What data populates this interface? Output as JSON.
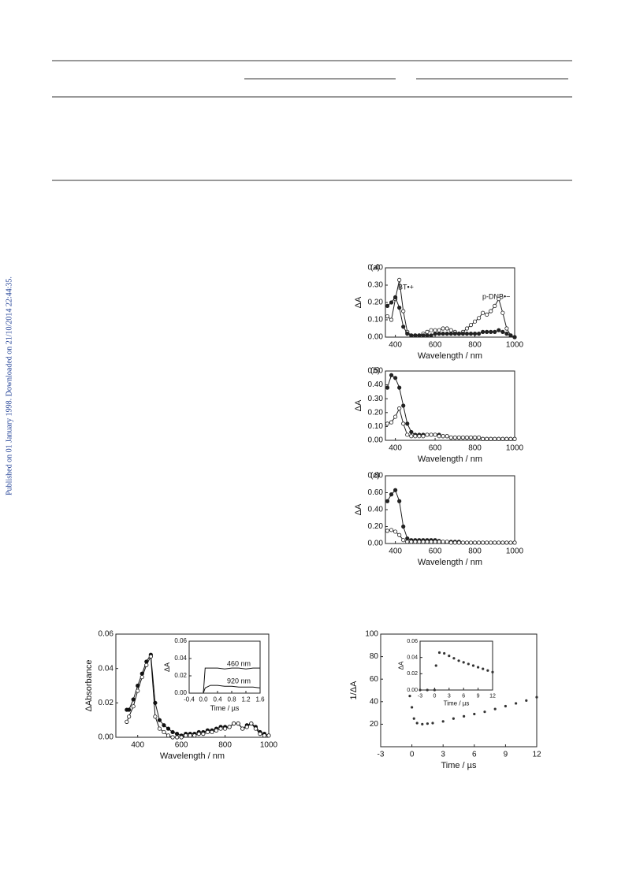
{
  "side_note": "Published on 01 January 1998. Downloaded on 21/10/2014 22:44:35.",
  "chart_data": [
    {
      "type": "line",
      "panel": "(a)",
      "xlabel": "Wavelength / nm",
      "ylabel": "ΔA",
      "annotations": [
        "BT•+",
        "p-DNB•−"
      ],
      "x": [
        360,
        380,
        400,
        420,
        440,
        460,
        480,
        500,
        520,
        540,
        560,
        580,
        600,
        620,
        640,
        660,
        680,
        700,
        720,
        740,
        760,
        780,
        800,
        820,
        840,
        860,
        880,
        900,
        920,
        940,
        960,
        980,
        1000
      ],
      "series": [
        {
          "marker": "open",
          "color": "#222222",
          "values": [
            0.12,
            0.1,
            0.22,
            0.33,
            0.15,
            0.03,
            0.01,
            0.01,
            0.01,
            0.02,
            0.03,
            0.04,
            0.04,
            0.04,
            0.05,
            0.05,
            0.04,
            0.03,
            0.02,
            0.03,
            0.05,
            0.07,
            0.09,
            0.11,
            0.14,
            0.13,
            0.15,
            0.18,
            0.22,
            0.14,
            0.05,
            0.01,
            0.0
          ]
        },
        {
          "marker": "filled",
          "color": "#222222",
          "values": [
            0.18,
            0.2,
            0.23,
            0.17,
            0.06,
            0.02,
            0.01,
            0.01,
            0.01,
            0.01,
            0.01,
            0.01,
            0.02,
            0.02,
            0.02,
            0.02,
            0.02,
            0.02,
            0.02,
            0.02,
            0.02,
            0.02,
            0.02,
            0.02,
            0.03,
            0.03,
            0.03,
            0.03,
            0.04,
            0.03,
            0.02,
            0.01,
            0.0
          ]
        }
      ],
      "xlim": [
        350,
        1000
      ],
      "xticks": [
        400,
        600,
        800,
        1000
      ],
      "ylim": [
        0,
        0.4
      ],
      "yticks": [
        {
          "value": 0,
          "label": "0.00"
        },
        {
          "value": 0.1,
          "label": "0.10"
        },
        {
          "value": 0.2,
          "label": "0.20"
        },
        {
          "value": 0.3,
          "label": "0.30"
        },
        {
          "value": 0.4,
          "label": "0.40"
        }
      ]
    },
    {
      "type": "line",
      "panel": "(b)",
      "xlabel": "Wavelength / nm",
      "ylabel": "ΔA",
      "x": [
        360,
        380,
        400,
        420,
        440,
        460,
        480,
        500,
        520,
        540,
        560,
        580,
        600,
        620,
        640,
        660,
        680,
        700,
        720,
        740,
        760,
        780,
        800,
        820,
        840,
        860,
        880,
        900,
        920,
        940,
        960,
        980,
        1000
      ],
      "series": [
        {
          "marker": "filled",
          "color": "#222222",
          "values": [
            0.38,
            0.47,
            0.45,
            0.38,
            0.25,
            0.12,
            0.06,
            0.04,
            0.04,
            0.04,
            0.04,
            0.04,
            0.04,
            0.04,
            0.03,
            0.03,
            0.02,
            0.02,
            0.02,
            0.02,
            0.02,
            0.02,
            0.02,
            0.02,
            0.01,
            0.01,
            0.01,
            0.01,
            0.01,
            0.01,
            0.01,
            0.01,
            0.01
          ]
        },
        {
          "marker": "open",
          "color": "#222222",
          "values": [
            0.12,
            0.13,
            0.17,
            0.23,
            0.12,
            0.04,
            0.03,
            0.03,
            0.03,
            0.03,
            0.04,
            0.04,
            0.04,
            0.03,
            0.03,
            0.03,
            0.02,
            0.02,
            0.02,
            0.02,
            0.02,
            0.02,
            0.02,
            0.02,
            0.01,
            0.01,
            0.01,
            0.01,
            0.01,
            0.01,
            0.01,
            0.01,
            0.01
          ]
        }
      ],
      "xlim": [
        350,
        1000
      ],
      "xticks": [
        400,
        600,
        800,
        1000
      ],
      "ylim": [
        0,
        0.5
      ],
      "yticks": [
        {
          "value": 0,
          "label": "0.00"
        },
        {
          "value": 0.1,
          "label": "0.10"
        },
        {
          "value": 0.2,
          "label": "0.20"
        },
        {
          "value": 0.3,
          "label": "0.30"
        },
        {
          "value": 0.4,
          "label": "0.40"
        },
        {
          "value": 0.5,
          "label": "0.50"
        }
      ]
    },
    {
      "type": "line",
      "panel": "(c)",
      "xlabel": "Wavelength / nm",
      "ylabel": "ΔA",
      "x": [
        360,
        380,
        400,
        420,
        440,
        460,
        480,
        500,
        520,
        540,
        560,
        580,
        600,
        620,
        640,
        660,
        680,
        700,
        720,
        740,
        760,
        780,
        800,
        820,
        840,
        860,
        880,
        900,
        920,
        940,
        960,
        980,
        1000
      ],
      "series": [
        {
          "marker": "filled",
          "color": "#222222",
          "values": [
            0.5,
            0.58,
            0.63,
            0.5,
            0.2,
            0.06,
            0.04,
            0.04,
            0.04,
            0.04,
            0.04,
            0.04,
            0.04,
            0.03,
            0.02,
            0.02,
            0.02,
            0.02,
            0.02,
            0.01,
            0.01,
            0.01,
            0.01,
            0.01,
            0.01,
            0.01,
            0.01,
            0.01,
            0.01,
            0.01,
            0.01,
            0.01,
            0.01
          ]
        },
        {
          "marker": "open",
          "color": "#222222",
          "values": [
            0.15,
            0.16,
            0.14,
            0.1,
            0.04,
            0.02,
            0.02,
            0.02,
            0.02,
            0.02,
            0.02,
            0.02,
            0.02,
            0.02,
            0.02,
            0.02,
            0.01,
            0.01,
            0.01,
            0.01,
            0.01,
            0.01,
            0.01,
            0.01,
            0.01,
            0.01,
            0.01,
            0.01,
            0.01,
            0.01,
            0.01,
            0.01,
            0.01
          ]
        }
      ],
      "xlim": [
        350,
        1000
      ],
      "xticks": [
        400,
        600,
        800,
        1000
      ],
      "ylim": [
        0,
        0.8
      ],
      "yticks": [
        {
          "value": 0,
          "label": "0.00"
        },
        {
          "value": 0.2,
          "label": "0.20"
        },
        {
          "value": 0.4,
          "label": "0.40"
        },
        {
          "value": 0.6,
          "label": "0.60"
        },
        {
          "value": 0.8,
          "label": "0.80"
        }
      ]
    },
    {
      "type": "line",
      "xlabel": "Wavelength / nm",
      "ylabel": "ΔAbsorbance",
      "x": [
        350,
        360,
        380,
        400,
        420,
        440,
        460,
        480,
        500,
        520,
        540,
        560,
        580,
        600,
        620,
        640,
        660,
        680,
        700,
        720,
        740,
        760,
        780,
        800,
        820,
        840,
        860,
        880,
        900,
        920,
        940,
        960,
        980,
        1000
      ],
      "series": [
        {
          "marker": "filled",
          "color": "#111111",
          "values": [
            0.016,
            0.016,
            0.022,
            0.03,
            0.037,
            0.044,
            0.048,
            0.02,
            0.01,
            0.007,
            0.005,
            0.003,
            0.002,
            0.001,
            0.002,
            0.002,
            0.002,
            0.003,
            0.003,
            0.004,
            0.004,
            0.005,
            0.006,
            0.006,
            0.006,
            0.008,
            0.008,
            0.005,
            0.007,
            0.008,
            0.006,
            0.003,
            0.002,
            0.001
          ]
        },
        {
          "marker": "open",
          "color": "#111111",
          "values": [
            0.009,
            0.012,
            0.018,
            0.027,
            0.035,
            0.042,
            0.047,
            0.012,
            0.005,
            0.003,
            0.001,
            0.0,
            0.0,
            0.0,
            0.001,
            0.001,
            0.001,
            0.002,
            0.002,
            0.003,
            0.003,
            0.004,
            0.005,
            0.005,
            0.006,
            0.008,
            0.008,
            0.005,
            0.006,
            0.008,
            0.005,
            0.002,
            0.001,
            0.001
          ]
        }
      ],
      "xlim": [
        300,
        1000
      ],
      "xticks": [
        400,
        600,
        800,
        1000
      ],
      "ylim": [
        0,
        0.06
      ],
      "yticks": [
        {
          "value": 0,
          "label": "0.00"
        },
        {
          "value": 0.02,
          "label": "0.02"
        },
        {
          "value": 0.04,
          "label": "0.04"
        },
        {
          "value": 0.06,
          "label": "0.06"
        }
      ]
    },
    {
      "type": "line",
      "xlabel": "Time / µs",
      "ylabel": "ΔA",
      "x": [
        -0.4,
        -0.2,
        0,
        0.05,
        0.2,
        0.4,
        0.6,
        0.8,
        1.0,
        1.2,
        1.4,
        1.6
      ],
      "series": [
        {
          "name": "460 nm",
          "marker": "none",
          "color": "#111111",
          "values": [
            0,
            0,
            0,
            0.029,
            0.029,
            0.029,
            0.028,
            0.029,
            0.029,
            0.028,
            0.029,
            0.029
          ]
        },
        {
          "name": "920 nm",
          "marker": "none",
          "color": "#111111",
          "values": [
            0,
            0,
            0,
            0.006,
            0.009,
            0.009,
            0.008,
            0.008,
            0.007,
            0.007,
            0.007,
            0.006
          ]
        }
      ],
      "xlim": [
        -0.4,
        1.6
      ],
      "xticks": [
        {
          "value": -0.4,
          "label": "-0.4"
        },
        {
          "value": 0,
          "label": "0.0"
        },
        0.4,
        0.8,
        1.2,
        1.6
      ],
      "ylim": [
        0,
        0.06
      ],
      "yticks": [
        {
          "value": 0,
          "label": "0.00"
        },
        {
          "value": 0.02,
          "label": "0.02"
        },
        {
          "value": 0.04,
          "label": "0.04"
        },
        {
          "value": 0.06,
          "label": "0.06"
        }
      ]
    },
    {
      "type": "scatter",
      "xlabel": "Time / µs",
      "ylabel": "1/ΔA",
      "x": [
        -0.2,
        0,
        0.2,
        0.5,
        1,
        1.5,
        2,
        3,
        4,
        5,
        6,
        7,
        8,
        9,
        10,
        11,
        12
      ],
      "series": [
        {
          "marker": "dot",
          "color": "#333333",
          "values": [
            45,
            35,
            25,
            21,
            20,
            20.5,
            21,
            22.5,
            25,
            27,
            29,
            31,
            33.5,
            36,
            38.5,
            41,
            44
          ]
        }
      ],
      "xlim": [
        -3,
        12
      ],
      "xticks": [
        -3,
        0,
        3,
        6,
        9,
        12
      ],
      "ylim": [
        0,
        100
      ],
      "yticks": [
        20,
        40,
        60,
        80,
        100
      ]
    },
    {
      "type": "scatter",
      "xlabel": "Time / µs",
      "ylabel": "ΔA",
      "x": [
        -3,
        -1.5,
        0,
        0.3,
        1,
        2,
        3,
        4,
        5,
        6,
        7,
        8,
        9,
        10,
        11,
        12
      ],
      "series": [
        {
          "marker": "dot",
          "color": "#333333",
          "values": [
            0,
            0,
            0,
            0.03,
            0.046,
            0.045,
            0.042,
            0.039,
            0.036,
            0.034,
            0.032,
            0.03,
            0.028,
            0.026,
            0.024,
            0.022
          ]
        }
      ],
      "xlim": [
        -3,
        12
      ],
      "xticks": [
        -3,
        0,
        3,
        6,
        9,
        12
      ],
      "ylim": [
        0,
        0.06
      ],
      "yticks": [
        {
          "value": 0,
          "label": "0.00"
        },
        {
          "value": 0.02,
          "label": "0.02"
        },
        {
          "value": 0.04,
          "label": "0.04"
        },
        {
          "value": 0.06,
          "label": "0.06"
        }
      ]
    }
  ]
}
